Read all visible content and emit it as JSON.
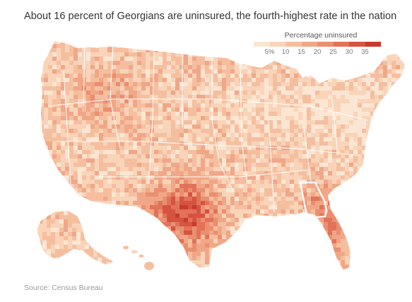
{
  "title": "About 16 percent of Georgians are uninsured, the fourth-highest rate in the nation",
  "legend": {
    "title": "Percentage uninsured",
    "ticks": [
      "5%",
      "10",
      "15",
      "20",
      "25",
      "30",
      "35"
    ],
    "colors": [
      "#fbe6d3",
      "#f9d4b9",
      "#f5bf9f",
      "#f0a788",
      "#ea8f70",
      "#e27358",
      "#d65342",
      "#c83a2f"
    ]
  },
  "highlight_state": "Georgia",
  "highlight_color": "#ffffff",
  "source": "Source: Census Bureau"
}
